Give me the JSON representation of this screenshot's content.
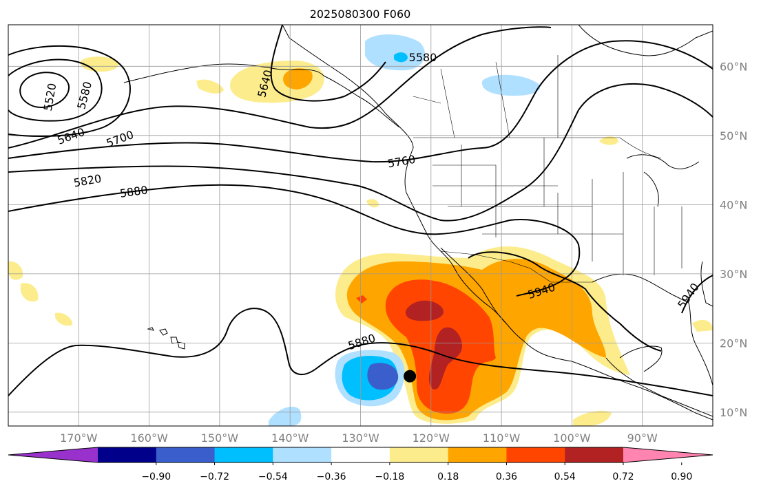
{
  "title": "2025080300 F060",
  "map": {
    "lon_labels": [
      "170°W",
      "160°W",
      "150°W",
      "140°W",
      "130°W",
      "120°W",
      "110°W",
      "100°W",
      "90°W"
    ],
    "lat_labels": [
      "60°N",
      "50°N",
      "40°N",
      "30°N",
      "20°N",
      "10°N"
    ],
    "contour_labels": [
      "5520",
      "5580",
      "5640",
      "5700",
      "5760",
      "5820",
      "5880",
      "5580",
      "5640",
      "5880",
      "5940",
      "5940"
    ],
    "extent": {
      "lon": [
        -180,
        -80
      ],
      "lat": [
        8,
        66
      ]
    },
    "marker": {
      "lon": -123,
      "lat": 15.2,
      "icon": "storm-center-dot"
    }
  },
  "colorbar": {
    "tick_labels": [
      "−0.90",
      "−0.72",
      "−0.54",
      "−0.36",
      "−0.18",
      "0.18",
      "0.36",
      "0.54",
      "0.72",
      "0.90"
    ],
    "colors": [
      "#9932cc",
      "#00008b",
      "#3a5fcd",
      "#00bfff",
      "#b0e0ff",
      "#ffffff",
      "#fcec8c",
      "#ffa500",
      "#ff4500",
      "#b22222",
      "#ff85b0"
    ]
  }
}
